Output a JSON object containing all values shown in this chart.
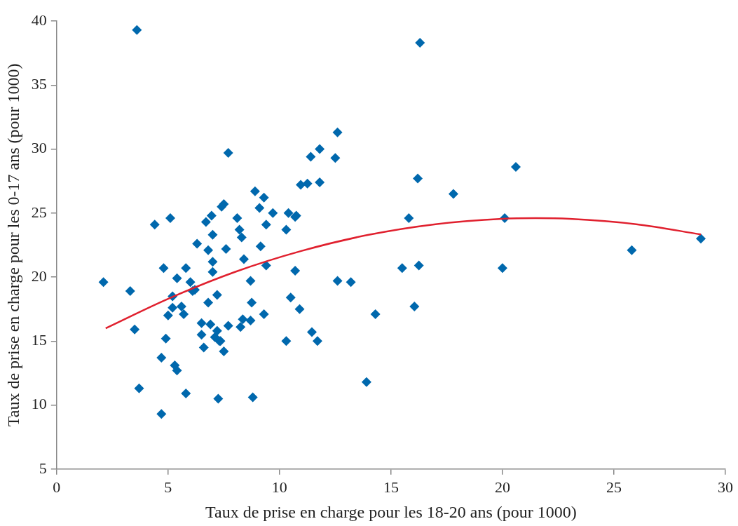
{
  "chart_data": {
    "type": "scatter",
    "xlabel": "Taux de prise en charge pour les 18-20 ans (pour 1000)",
    "ylabel": "Taux de prise en charge pour les 0-17 ans (pour 1000)",
    "xlim": [
      0,
      30
    ],
    "xticks": [
      0,
      5,
      10,
      15,
      20,
      25,
      30
    ],
    "ylim": [
      5,
      40
    ],
    "yticks": [
      5,
      10,
      15,
      20,
      25,
      30,
      35,
      40
    ],
    "grid": false,
    "legend": false,
    "marker": "diamond",
    "series": [
      {
        "color": "#0068ad",
        "x": [
          2.1,
          3.6,
          3.3,
          3.5,
          3.7,
          4.4,
          4.8,
          4.7,
          4.7,
          4.9,
          5.1,
          5.0,
          5.2,
          5.2,
          5.3,
          5.4,
          5.4,
          5.6,
          5.7,
          5.8,
          5.8,
          6.0,
          6.2,
          6.1,
          6.3,
          6.5,
          6.5,
          6.6,
          6.7,
          6.8,
          6.8,
          6.9,
          6.95,
          7.0,
          7.0,
          7.0,
          7.1,
          7.2,
          7.2,
          7.25,
          7.3,
          7.4,
          7.35,
          7.5,
          7.5,
          7.6,
          7.7,
          7.7,
          8.1,
          8.2,
          8.25,
          8.3,
          8.35,
          8.4,
          8.7,
          8.75,
          8.7,
          8.8,
          8.9,
          9.1,
          9.15,
          9.3,
          9.3,
          9.4,
          9.4,
          9.7,
          10.3,
          10.4,
          10.3,
          10.5,
          10.7,
          10.75,
          10.7,
          10.9,
          10.95,
          11.25,
          11.4,
          11.45,
          11.7,
          11.8,
          11.8,
          12.5,
          12.6,
          12.6,
          13.2,
          13.9,
          14.3,
          15.5,
          15.8,
          16.05,
          16.3,
          16.2,
          16.25,
          17.8,
          20.1,
          20.0,
          20.6,
          25.8,
          28.9
        ],
        "values": [
          19.6,
          39.3,
          18.9,
          15.9,
          11.3,
          24.1,
          20.7,
          13.7,
          9.3,
          15.2,
          24.6,
          17.0,
          18.5,
          17.6,
          13.1,
          12.7,
          19.9,
          17.7,
          17.1,
          20.7,
          10.9,
          19.6,
          19.0,
          18.9,
          22.6,
          16.4,
          15.5,
          14.5,
          24.3,
          22.1,
          18.0,
          16.3,
          24.8,
          23.3,
          21.2,
          20.4,
          15.3,
          15.8,
          18.6,
          10.5,
          15.0,
          25.5,
          15.0,
          25.7,
          14.2,
          22.2,
          29.7,
          16.2,
          24.6,
          23.7,
          16.1,
          23.1,
          16.7,
          21.4,
          19.7,
          18.0,
          16.6,
          10.6,
          26.7,
          25.4,
          22.4,
          26.2,
          17.1,
          24.1,
          20.9,
          25.0,
          23.7,
          25.0,
          15.0,
          18.4,
          24.7,
          24.8,
          20.5,
          17.5,
          27.2,
          27.3,
          29.4,
          15.7,
          15.0,
          30.0,
          27.4,
          29.3,
          19.7,
          31.3,
          19.6,
          11.8,
          17.1,
          20.7,
          24.6,
          17.7,
          38.3,
          27.7,
          20.9,
          26.5,
          24.6,
          20.7,
          28.6,
          22.1,
          23.0
        ]
      },
      {
        "type": "line",
        "color": "#e0202e",
        "marker": "none",
        "x": [
          2.2,
          5,
          8,
          11,
          14,
          17,
          20,
          21.5,
          23,
          26,
          28.9
        ],
        "values": [
          16.0,
          18.3,
          20.4,
          22.05,
          23.3,
          24.13,
          24.55,
          24.6,
          24.55,
          24.13,
          23.33
        ]
      }
    ]
  }
}
